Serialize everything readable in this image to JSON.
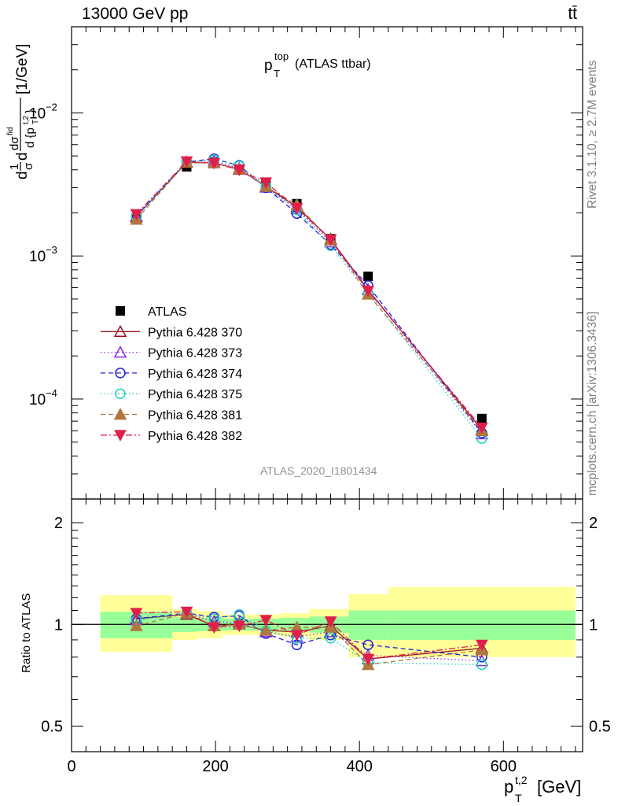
{
  "header": {
    "left": "13000 GeV pp",
    "right": "tt̄"
  },
  "side_text": {
    "rivet": "Rivet 3.1.10, ≥ 2.7M events",
    "mcplots": "mcplots.cern.ch [arXiv:1306.3436]"
  },
  "reference": "ATLAS_2020_I1801434",
  "colors": {
    "ATLAS": "#000000",
    "p370": "#99121c",
    "p373": "#8a2be2",
    "p374": "#2020dd",
    "p375": "#20d0c0",
    "p381": "#b07840",
    "p382": "#e0204a",
    "band_inner": "#99ff99",
    "band_outer": "#ffff99"
  },
  "chart_data": [
    {
      "type": "line",
      "panel": "main",
      "title": "p_T^top (ATLAS ttbar)",
      "xlabel": "p_T^{t,2} [GeV]",
      "ylabel": "dσ^{fid}/d{p_T^{t,2}} 1/σ [1/GeV]",
      "yscale": "log",
      "xlim": [
        0,
        710
      ],
      "ylim": [
        2e-05,
        0.04
      ],
      "x_ticks": [
        "0",
        "200",
        "400",
        "600"
      ],
      "y_ticks": [
        "10^-4",
        "10^-3",
        "10^-2"
      ],
      "legend_position": "left-middle",
      "x": [
        90,
        160,
        198,
        233,
        270,
        313,
        360,
        412,
        570
      ],
      "series": [
        {
          "name": "ATLAS",
          "marker": "square-filled",
          "line": "none",
          "values": [
            0.00182,
            0.0042,
            0.00453,
            0.00404,
            0.00318,
            0.00232,
            0.00132,
            0.00072,
            7.3e-05
          ]
        },
        {
          "name": "Pythia 6.428 370",
          "marker": "triangle-up-open",
          "line": "solid",
          "values": [
            0.00189,
            0.0045,
            0.00447,
            0.00403,
            0.00306,
            0.0022,
            0.00131,
            0.00058,
            6.1e-05
          ]
        },
        {
          "name": "Pythia 6.428 373",
          "marker": "triangle-up-open",
          "line": "dotted",
          "values": [
            0.00187,
            0.00454,
            0.00462,
            0.0041,
            0.00302,
            0.00213,
            0.00125,
            0.00058,
            5.7e-05
          ]
        },
        {
          "name": "Pythia 6.428 374",
          "marker": "circle-open",
          "line": "dashed",
          "values": [
            0.0019,
            0.00455,
            0.00478,
            0.00428,
            0.003,
            0.00198,
            0.0012,
            0.00062,
            5.8e-05
          ]
        },
        {
          "name": "Pythia 6.428 375",
          "marker": "circle-open",
          "line": "dotted",
          "values": [
            0.00188,
            0.00452,
            0.0047,
            0.00432,
            0.00305,
            0.0021,
            0.00118,
            0.00055,
            5.3e-05
          ]
        },
        {
          "name": "Pythia 6.428 381",
          "marker": "triangle-up-filled",
          "line": "dashed",
          "values": [
            0.0018,
            0.00452,
            0.00448,
            0.00406,
            0.00306,
            0.00228,
            0.00129,
            0.00054,
            6e-05
          ]
        },
        {
          "name": "Pythia 6.428 382",
          "marker": "triangle-down-filled",
          "line": "dashdot",
          "values": [
            0.00196,
            0.00458,
            0.00445,
            0.004,
            0.00326,
            0.00216,
            0.0013,
            0.00057,
            6.3e-05
          ]
        }
      ]
    },
    {
      "type": "line",
      "panel": "ratio",
      "ylabel": "Ratio to ATLAS",
      "yscale": "log",
      "xlim": [
        0,
        710
      ],
      "ylim": [
        0.42,
        2.35
      ],
      "y_ticks": [
        "0.5",
        "1",
        "2"
      ],
      "bands": {
        "edges": [
          40,
          140,
          175,
          210,
          250,
          290,
          330,
          385,
          440,
          700
        ],
        "inner_low": [
          0.91,
          0.95,
          0.955,
          0.96,
          0.96,
          0.955,
          0.945,
          0.9,
          0.9
        ],
        "inner_high": [
          1.09,
          1.05,
          1.045,
          1.04,
          1.04,
          1.045,
          1.055,
          1.1,
          1.1
        ],
        "outer_low": [
          0.83,
          0.9,
          0.91,
          0.93,
          0.93,
          0.92,
          0.9,
          0.8,
          0.8
        ],
        "outer_high": [
          1.22,
          1.11,
          1.095,
          1.07,
          1.07,
          1.08,
          1.11,
          1.23,
          1.29
        ]
      },
      "x": [
        90,
        160,
        198,
        233,
        270,
        313,
        360,
        412,
        570
      ],
      "series": [
        {
          "name": "Pythia 6.428 370",
          "values": [
            1.04,
            1.07,
            0.99,
            1.0,
            0.96,
            0.95,
            0.99,
            0.79,
            0.85
          ]
        },
        {
          "name": "Pythia 6.428 373",
          "values": [
            1.03,
            1.08,
            1.02,
            1.01,
            0.95,
            0.92,
            0.95,
            0.81,
            0.78
          ]
        },
        {
          "name": "Pythia 6.428 374",
          "values": [
            1.04,
            1.08,
            1.05,
            1.06,
            0.94,
            0.87,
            0.93,
            0.87,
            0.8
          ]
        },
        {
          "name": "Pythia 6.428 375",
          "values": [
            1.03,
            1.08,
            1.04,
            1.07,
            0.96,
            0.91,
            0.91,
            0.77,
            0.76
          ]
        },
        {
          "name": "Pythia 6.428 381",
          "values": [
            0.99,
            1.08,
            0.99,
            1.0,
            0.96,
            0.98,
            0.98,
            0.76,
            0.84
          ]
        },
        {
          "name": "Pythia 6.428 382",
          "values": [
            1.08,
            1.09,
            0.98,
            0.99,
            1.03,
            0.93,
            1.02,
            0.79,
            0.87
          ]
        }
      ]
    }
  ]
}
